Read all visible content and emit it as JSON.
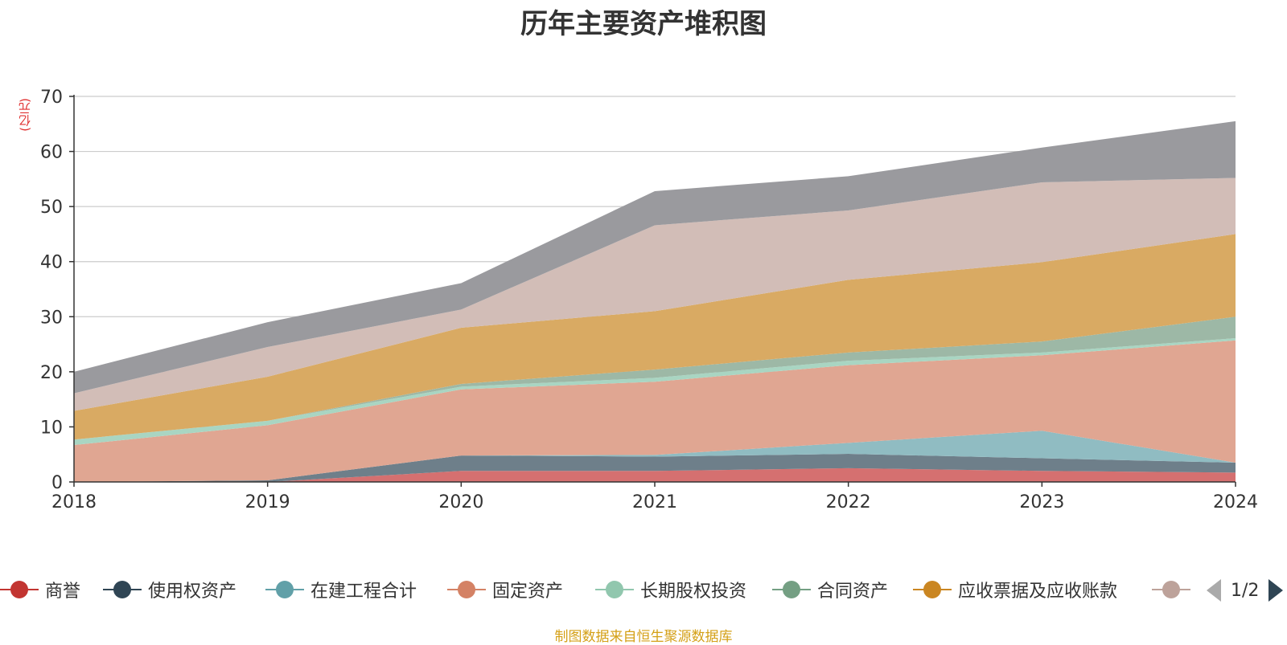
{
  "chart_data": {
    "type": "area",
    "stacked": true,
    "title": "历年主要资产堆积图",
    "ylabel": "(亿元)",
    "ylim": [
      0,
      70
    ],
    "yticks": [
      0,
      10,
      20,
      30,
      40,
      50,
      60,
      70
    ],
    "categories": [
      "2018",
      "2019",
      "2020",
      "2021",
      "2022",
      "2023",
      "2024"
    ],
    "grid": true,
    "legend_position": "bottom",
    "series": [
      {
        "name": "商誉",
        "color": "#c23531",
        "area_color": "#d57070",
        "values": [
          0,
          0,
          2.0,
          2.0,
          2.5,
          2.0,
          1.7
        ]
      },
      {
        "name": "使用权资产",
        "color": "#2f4554",
        "area_color": "#6e7f8a",
        "values": [
          0,
          0.3,
          2.8,
          2.6,
          2.6,
          2.3,
          1.8
        ]
      },
      {
        "name": "在建工程合计",
        "color": "#61a0a8",
        "area_color": "#90bcc2",
        "values": [
          0,
          0,
          0,
          0.3,
          2.0,
          5.0,
          0
        ]
      },
      {
        "name": "固定资产",
        "color": "#d48265",
        "area_color": "#e0a692",
        "values": [
          6.7,
          10.0,
          12.0,
          13.3,
          14.1,
          13.7,
          22.2
        ]
      },
      {
        "name": "长期股权投资",
        "color": "#91c7ae",
        "area_color": "#a9d5c2",
        "values": [
          1.0,
          0.8,
          0.5,
          0.7,
          0.8,
          0.5,
          0.4
        ]
      },
      {
        "name": "合同资产",
        "color": "#749f83",
        "area_color": "#9db8a6",
        "values": [
          0,
          0,
          0.5,
          1.5,
          1.5,
          2.0,
          3.9
        ]
      },
      {
        "name": "应收票据及应收账款",
        "color": "#ca8622",
        "area_color": "#d9aa63",
        "values": [
          5.2,
          8.0,
          10.2,
          10.6,
          13.2,
          14.4,
          15.0
        ]
      },
      {
        "name": "",
        "color": "#bda29a",
        "area_color": "#d2bdb7",
        "values": [
          3.2,
          5.4,
          3.3,
          15.6,
          12.6,
          14.5,
          10.2
        ]
      },
      {
        "name": "",
        "color": "#6e7074",
        "area_color": "#9a9a9e",
        "values": [
          3.9,
          4.5,
          4.8,
          6.2,
          6.2,
          6.3,
          10.3
        ]
      }
    ]
  },
  "legend": {
    "items": [
      {
        "label": "商誉",
        "color": "#c23531"
      },
      {
        "label": "使用权资产",
        "color": "#2f4554"
      },
      {
        "label": "在建工程合计",
        "color": "#61a0a8"
      },
      {
        "label": "固定资产",
        "color": "#d48265"
      },
      {
        "label": "长期股权投资",
        "color": "#91c7ae"
      },
      {
        "label": "合同资产",
        "color": "#749f83"
      },
      {
        "label": "应收票据及应收账款",
        "color": "#ca8622"
      },
      {
        "label": "",
        "color": "#bda29a"
      }
    ],
    "page": "1/2"
  },
  "source_text": "制图数据来自恒生聚源数据库"
}
